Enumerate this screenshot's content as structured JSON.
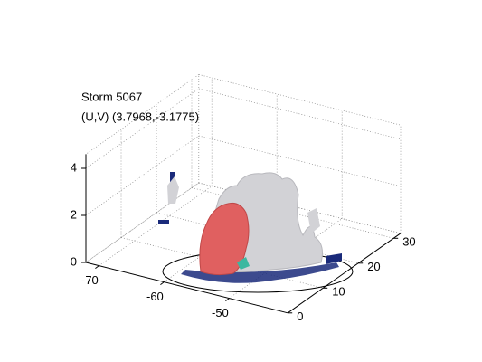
{
  "chart_data": {
    "type": "isosurface3d",
    "title": "Storm 5067",
    "subtitle": "(U,V) (3.7968,-3.1775)",
    "xlim": [
      -72,
      -41
    ],
    "xticks": [
      -70,
      -60,
      -50
    ],
    "ylim": [
      0,
      32
    ],
    "yticks": [
      0,
      10,
      20,
      30
    ],
    "zlim": [
      0,
      4.6
    ],
    "zticks": [
      0,
      2,
      4
    ],
    "grid": true
  }
}
